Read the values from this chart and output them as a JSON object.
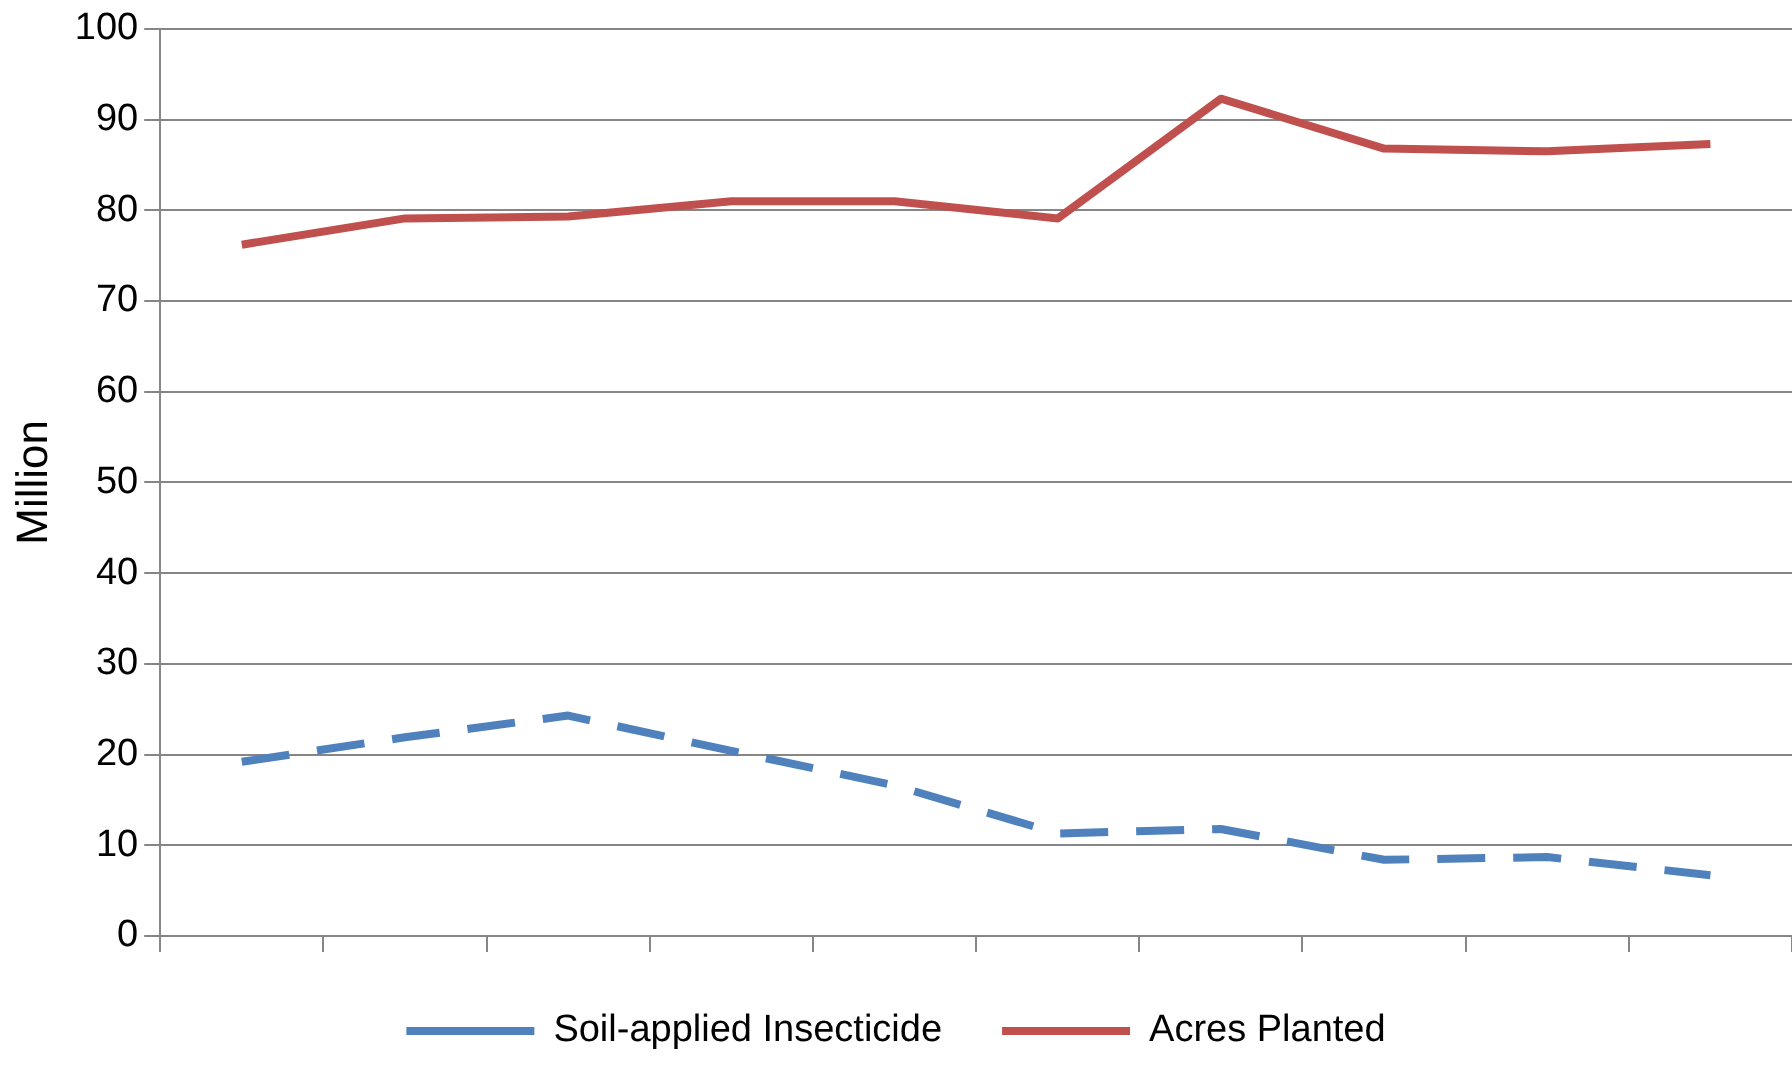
{
  "chart_data": {
    "type": "line",
    "ylabel": "Million",
    "categories": [
      null,
      null,
      null,
      null,
      null,
      null,
      null,
      null,
      null,
      null
    ],
    "series": [
      {
        "name": "Soil-applied Insecticide",
        "color": "#4f81bd",
        "line_style": "dashed",
        "values": [
          19.2,
          21.9,
          24.3,
          20.4,
          16.6,
          11.3,
          11.8,
          8.4,
          8.7,
          6.7
        ]
      },
      {
        "name": "Acres Planted",
        "color": "#c0504d",
        "line_style": "solid",
        "values": [
          76.2,
          79.1,
          79.3,
          81,
          81,
          79.1,
          92.3,
          86.8,
          86.5,
          87.3
        ]
      }
    ],
    "ylim": [
      0,
      100
    ],
    "yticks": [
      0,
      10,
      20,
      30,
      40,
      50,
      60,
      70,
      80,
      90,
      100
    ],
    "grid": "y",
    "legend": "bottom",
    "tick_labels": "y",
    "marker": "none"
  }
}
